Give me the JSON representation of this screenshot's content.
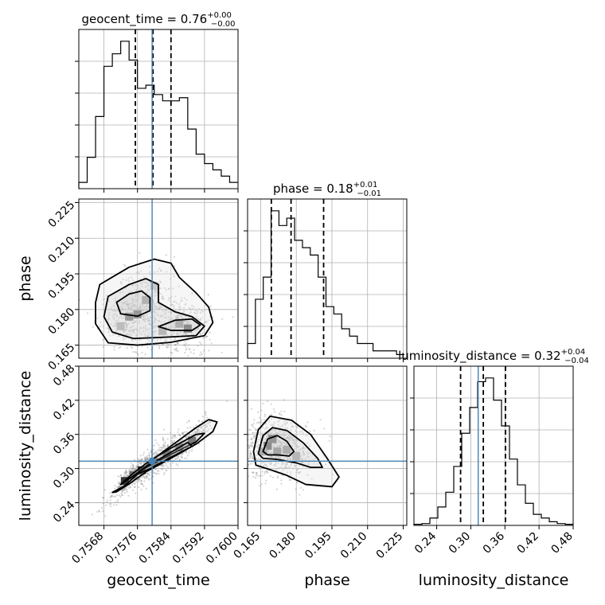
{
  "chart_data": {
    "type": "corner",
    "parameters": [
      {
        "name": "geocent_time",
        "axis_label": "geocent_time",
        "title_prefix": "geocent_time = 0.76",
        "title_upper": "+0.00",
        "title_lower": "−0.00",
        "range": [
          0.7562,
          0.76
        ],
        "ticks": [
          0.7568,
          0.7576,
          0.7584,
          0.7592,
          0.76
        ],
        "tick_labels": [
          "0.7568",
          "0.7576",
          "0.7584",
          "0.7592",
          "0.7600"
        ],
        "truth": 0.75795,
        "quantiles": [
          0.75755,
          0.75797,
          0.7584
        ],
        "histogram": {
          "bin_start": 0.7562,
          "bin_width": 0.0002,
          "counts": [
            2,
            10,
            23,
            39,
            43,
            47,
            41,
            32,
            33,
            30,
            28,
            28,
            29,
            19,
            11,
            8,
            6,
            4,
            2
          ]
        }
      },
      {
        "name": "phase",
        "axis_label": "phase",
        "title_prefix": "phase = 0.18",
        "title_upper": "+0.01",
        "title_lower": "−0.01",
        "range": [
          0.1595,
          0.2265
        ],
        "ticks": [
          0.165,
          0.18,
          0.195,
          0.21,
          0.225
        ],
        "tick_labels": [
          "0.165",
          "0.180",
          "0.195",
          "0.210",
          "0.225"
        ],
        "quantiles": [
          0.1695,
          0.1778,
          0.1915
        ],
        "histogram": {
          "bin_start": 0.1595,
          "bin_width": 0.0033,
          "counts": [
            2,
            8,
            11,
            20,
            18,
            19,
            16,
            15,
            14,
            11,
            7,
            6,
            4,
            3,
            2,
            2,
            1,
            1,
            1,
            0.5
          ]
        }
      },
      {
        "name": "luminosity_distance",
        "axis_label": "luminosity_distance",
        "title_prefix": "luminosity_distance = 0.32",
        "title_upper": "+0.04",
        "title_lower": "−0.04",
        "range": [
          0.2,
          0.48
        ],
        "ticks": [
          0.24,
          0.3,
          0.36,
          0.42,
          0.48
        ],
        "tick_labels": [
          "0.24",
          "0.30",
          "0.36",
          "0.42",
          "0.48"
        ],
        "truth": 0.313,
        "quantiles": [
          0.282,
          0.322,
          0.361
        ],
        "histogram": {
          "bin_start": 0.2,
          "bin_width": 0.014,
          "counts": [
            0.3,
            0.5,
            2,
            5,
            9,
            16,
            25,
            32,
            39,
            40,
            34,
            27,
            18,
            11,
            6,
            3,
            2,
            1,
            0.5,
            0.3
          ]
        }
      }
    ],
    "pairs": [
      {
        "x": "geocent_time",
        "y": "phase",
        "truth": [
          0.75795,
          null
        ],
        "contours": [
          [
            [
              0.7567,
              0.1905
            ],
            [
              0.7574,
              0.1978
            ],
            [
              0.758,
              0.2012
            ],
            [
              0.7584,
              0.1995
            ],
            [
              0.7586,
              0.1935
            ],
            [
              0.759,
              0.187
            ],
            [
              0.7593,
              0.181
            ],
            [
              0.7594,
              0.1745
            ],
            [
              0.7592,
              0.169
            ],
            [
              0.7584,
              0.1662
            ],
            [
              0.7576,
              0.165
            ],
            [
              0.7569,
              0.166
            ],
            [
              0.7566,
              0.174
            ],
            [
              0.7566,
              0.183
            ]
          ],
          [
            [
              0.7569,
              0.1855
            ],
            [
              0.7574,
              0.1905
            ],
            [
              0.7578,
              0.193
            ],
            [
              0.7581,
              0.1905
            ],
            [
              0.7581,
              0.183
            ],
            [
              0.7585,
              0.179
            ],
            [
              0.7589,
              0.177
            ],
            [
              0.7592,
              0.173
            ],
            [
              0.759,
              0.169
            ],
            [
              0.7582,
              0.1683
            ],
            [
              0.7575,
              0.1678
            ],
            [
              0.757,
              0.1705
            ],
            [
              0.7568,
              0.177
            ]
          ],
          [
            [
              0.7571,
              0.183
            ],
            [
              0.7574,
              0.1865
            ],
            [
              0.7577,
              0.1878
            ],
            [
              0.7579,
              0.185
            ],
            [
              0.7579,
              0.1795
            ],
            [
              0.7576,
              0.1772
            ],
            [
              0.7572,
              0.1782
            ]
          ],
          [
            [
              0.7581,
              0.1728
            ],
            [
              0.7585,
              0.1755
            ],
            [
              0.7589,
              0.176
            ],
            [
              0.7591,
              0.1735
            ],
            [
              0.7589,
              0.1712
            ],
            [
              0.7584,
              0.1712
            ]
          ]
        ],
        "density": [
          [
            0.7576,
            0.178,
            0.85
          ],
          [
            0.7574,
            0.177,
            0.7
          ],
          [
            0.7578,
            0.184,
            0.55
          ],
          [
            0.7588,
            0.172,
            1.0
          ],
          [
            0.7586,
            0.174,
            0.6
          ],
          [
            0.7582,
            0.171,
            0.45
          ],
          [
            0.7572,
            0.173,
            0.4
          ],
          [
            0.758,
            0.19,
            0.3
          ]
        ]
      },
      {
        "x": "geocent_time",
        "y": "luminosity_distance",
        "truth": [
          0.75795,
          0.313
        ],
        "contours": [
          [
            [
              0.757,
              0.258
            ],
            [
              0.7573,
              0.27
            ],
            [
              0.7576,
              0.29
            ],
            [
              0.758,
              0.318
            ],
            [
              0.7585,
              0.345
            ],
            [
              0.759,
              0.372
            ],
            [
              0.7593,
              0.386
            ],
            [
              0.7595,
              0.382
            ],
            [
              0.7594,
              0.365
            ],
            [
              0.759,
              0.343
            ],
            [
              0.7584,
              0.318
            ],
            [
              0.7578,
              0.294
            ],
            [
              0.7574,
              0.273
            ],
            [
              0.7571,
              0.259
            ]
          ],
          [
            [
              0.7572,
              0.272
            ],
            [
              0.7575,
              0.292
            ],
            [
              0.7579,
              0.314
            ],
            [
              0.7584,
              0.336
            ],
            [
              0.759,
              0.36
            ],
            [
              0.7592,
              0.362
            ],
            [
              0.759,
              0.347
            ],
            [
              0.7584,
              0.325
            ],
            [
              0.7578,
              0.301
            ],
            [
              0.7574,
              0.282
            ]
          ],
          [
            [
              0.7575,
              0.287
            ],
            [
              0.7578,
              0.303
            ],
            [
              0.7582,
              0.32
            ],
            [
              0.7588,
              0.346
            ],
            [
              0.7589,
              0.339
            ],
            [
              0.7584,
              0.32
            ],
            [
              0.7579,
              0.3
            ],
            [
              0.7576,
              0.29
            ]
          ]
        ],
        "density": [
          [
            0.7573,
            0.278,
            0.85
          ],
          [
            0.7577,
            0.297,
            0.9
          ],
          [
            0.758,
            0.312,
            0.8
          ],
          [
            0.7583,
            0.325,
            0.95
          ],
          [
            0.7586,
            0.337,
            0.9
          ],
          [
            0.7589,
            0.349,
            1.0
          ],
          [
            0.7575,
            0.288,
            0.6
          ]
        ]
      },
      {
        "x": "phase",
        "y": "luminosity_distance",
        "truth": [
          null,
          0.313
        ],
        "contours": [
          [
            [
              0.162,
              0.33
            ],
            [
              0.164,
              0.368
            ],
            [
              0.169,
              0.392
            ],
            [
              0.178,
              0.385
            ],
            [
              0.186,
              0.36
            ],
            [
              0.193,
              0.318
            ],
            [
              0.198,
              0.285
            ],
            [
              0.195,
              0.268
            ],
            [
              0.184,
              0.272
            ],
            [
              0.176,
              0.288
            ],
            [
              0.169,
              0.298
            ],
            [
              0.163,
              0.306
            ]
          ],
          [
            [
              0.164,
              0.326
            ],
            [
              0.166,
              0.358
            ],
            [
              0.17,
              0.372
            ],
            [
              0.176,
              0.367
            ],
            [
              0.183,
              0.345
            ],
            [
              0.189,
              0.318
            ],
            [
              0.191,
              0.302
            ],
            [
              0.186,
              0.302
            ],
            [
              0.18,
              0.31
            ],
            [
              0.172,
              0.316
            ],
            [
              0.166,
              0.318
            ]
          ],
          [
            [
              0.166,
              0.33
            ],
            [
              0.168,
              0.352
            ],
            [
              0.172,
              0.358
            ],
            [
              0.176,
              0.348
            ],
            [
              0.179,
              0.33
            ],
            [
              0.177,
              0.322
            ],
            [
              0.172,
              0.324
            ],
            [
              0.168,
              0.324
            ]
          ]
        ],
        "density": [
          [
            0.168,
            0.34,
            1.0
          ],
          [
            0.17,
            0.352,
            0.9
          ],
          [
            0.172,
            0.33,
            0.7
          ],
          [
            0.176,
            0.333,
            0.6
          ],
          [
            0.18,
            0.322,
            0.45
          ],
          [
            0.166,
            0.33,
            0.55
          ]
        ]
      }
    ],
    "colors": {
      "truth": "#4682b4",
      "histogram": "#000000",
      "quantile": "#000000",
      "grid": "#b0b0b0",
      "points": "#888888"
    },
    "grid": true
  }
}
